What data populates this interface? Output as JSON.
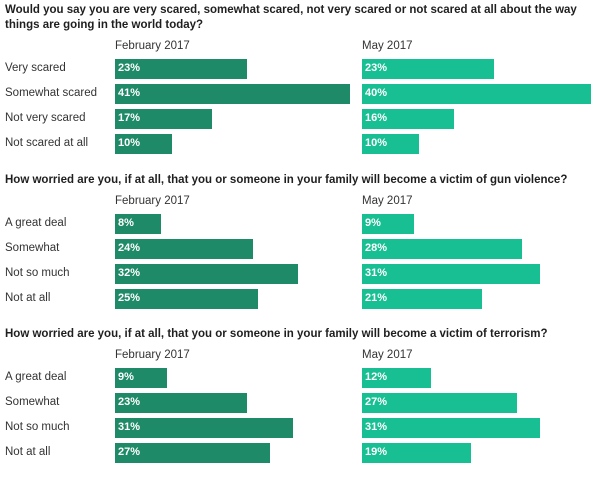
{
  "colors": {
    "feb": "#1e8a67",
    "may": "#17bf93"
  },
  "chart_data": [
    {
      "type": "bar",
      "title": "Would you say you are very scared, somewhat scared, not very scared or not scared at all about the way things are going in the world today?",
      "categories": [
        "Very scared",
        "Somewhat scared",
        "Not very scared",
        "Not scared at all"
      ],
      "series": [
        {
          "name": "February 2017",
          "values": [
            23,
            41,
            17,
            10
          ],
          "labels": [
            "23%",
            "41%",
            "17%",
            "10%"
          ]
        },
        {
          "name": "May 2017",
          "values": [
            23,
            40,
            16,
            10
          ],
          "labels": [
            "23%",
            "40%",
            "16%",
            "10%"
          ]
        }
      ],
      "ylim": [
        0,
        41
      ]
    },
    {
      "type": "bar",
      "title": "How worried are you, if at all, that you or someone in your family will become a victim of gun violence?",
      "categories": [
        "A great deal",
        "Somewhat",
        "Not so much",
        "Not at all"
      ],
      "series": [
        {
          "name": "February 2017",
          "values": [
            8,
            24,
            32,
            25
          ],
          "labels": [
            "8%",
            "24%",
            "32%",
            "25%"
          ]
        },
        {
          "name": "May 2017",
          "values": [
            9,
            28,
            31,
            21
          ],
          "labels": [
            "9%",
            "28%",
            "31%",
            "21%"
          ]
        }
      ],
      "ylim": [
        0,
        41
      ]
    },
    {
      "type": "bar",
      "title": "How worried are you, if at all, that you or someone in your family will become a victim of terrorism?",
      "categories": [
        "A great deal",
        "Somewhat",
        "Not so much",
        "Not at all"
      ],
      "series": [
        {
          "name": "February 2017",
          "values": [
            9,
            23,
            31,
            27
          ],
          "labels": [
            "9%",
            "23%",
            "31%",
            "27%"
          ]
        },
        {
          "name": "May 2017",
          "values": [
            12,
            27,
            31,
            19
          ],
          "labels": [
            "12%",
            "27%",
            "31%",
            "19%"
          ]
        }
      ],
      "ylim": [
        0,
        41
      ]
    }
  ]
}
